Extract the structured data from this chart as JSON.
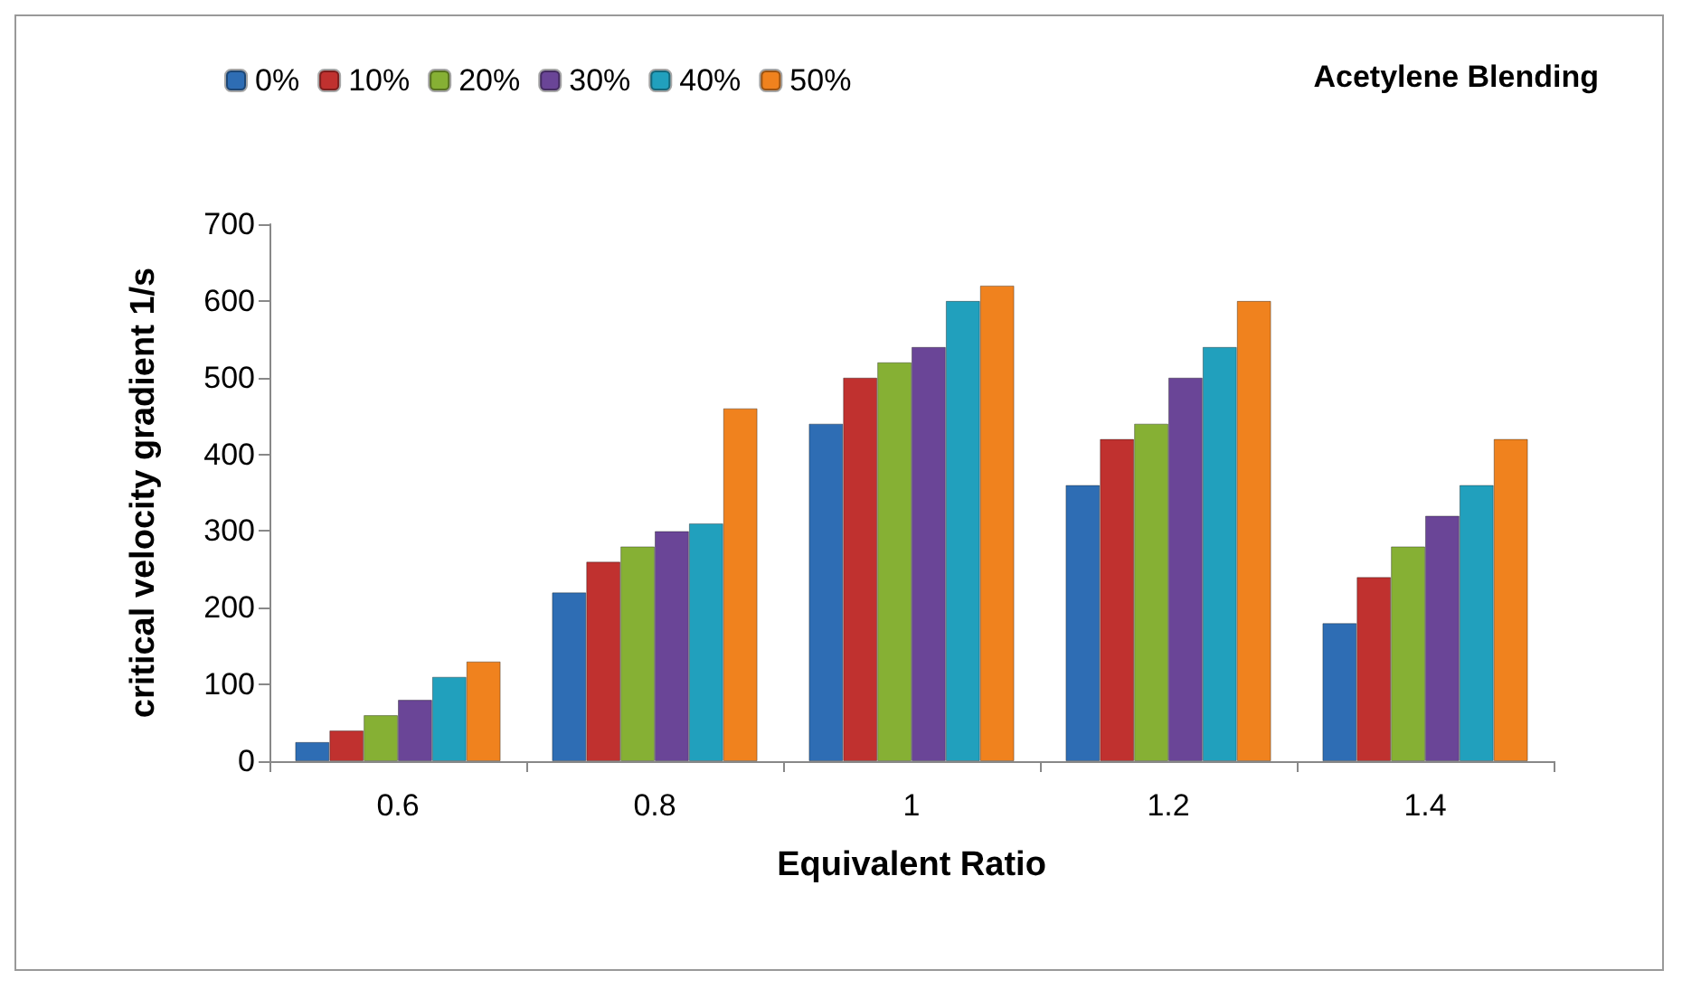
{
  "chart_data": {
    "type": "bar",
    "xlabel": "Equivalent Ratio",
    "ylabel": "critical velocity gradient 1/s",
    "legend_title": "Acetylene Blending",
    "categories": [
      "0.6",
      "0.8",
      "1",
      "1.2",
      "1.4"
    ],
    "series": [
      {
        "name": "0%",
        "color": "#2e6db4",
        "values": [
          25,
          220,
          440,
          360,
          180
        ]
      },
      {
        "name": "10%",
        "color": "#c0312f",
        "values": [
          40,
          260,
          500,
          420,
          240
        ]
      },
      {
        "name": "20%",
        "color": "#86b034",
        "values": [
          60,
          280,
          520,
          440,
          280
        ]
      },
      {
        "name": "30%",
        "color": "#6a4597",
        "values": [
          80,
          300,
          540,
          500,
          320
        ]
      },
      {
        "name": "40%",
        "color": "#21a0bd",
        "values": [
          110,
          310,
          600,
          540,
          360
        ]
      },
      {
        "name": "50%",
        "color": "#f0821e",
        "values": [
          130,
          460,
          620,
          600,
          420
        ]
      }
    ],
    "ylim": [
      0,
      700
    ],
    "yticks": [
      0,
      100,
      200,
      300,
      400,
      500,
      600,
      700
    ],
    "grid": false,
    "legend": "top left"
  }
}
